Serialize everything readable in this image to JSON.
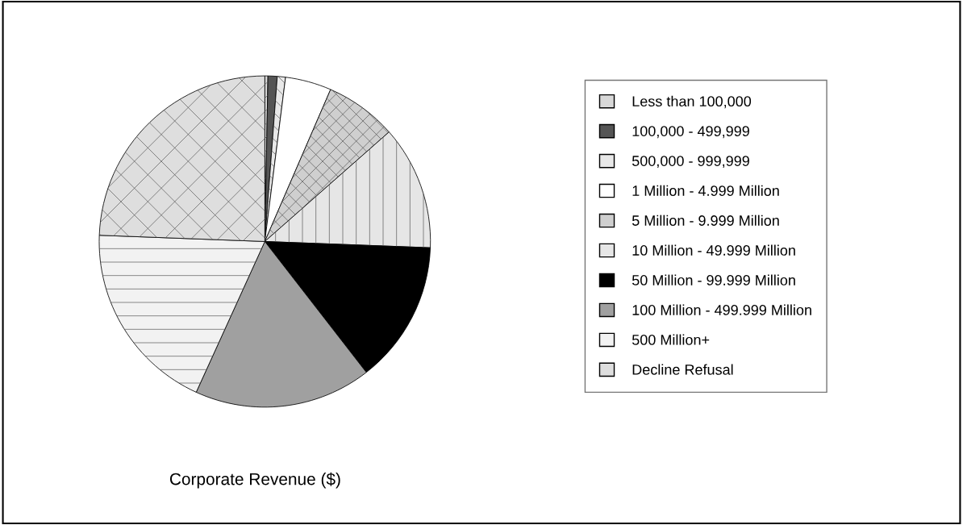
{
  "chart_data": {
    "type": "pie",
    "title": "Corporate Revenue ($)",
    "categories": [
      "Less than 100,000",
      "100,000 - 499,999",
      "500,000 - 999,999",
      "1 Million - 4.999 Million",
      "5 Million - 9.999 Million",
      "10 Million - 49.999 Million",
      "50 Million - 99.999 Million",
      "100 Million - 499.999 Million",
      "500 Million+",
      "Decline Refusal"
    ],
    "values": [
      0.3,
      0.9,
      0.8,
      4.5,
      7.0,
      12.1,
      13.9,
      17.3,
      18.8,
      24.4
    ],
    "colors": [
      "#d8d8d8",
      "#555555",
      "#e8e8e8",
      "#ffffff",
      "#cfcfcf",
      "#e6e6e6",
      "#000000",
      "#a0a0a0",
      "#f2f2f2",
      "#dedede"
    ],
    "legend": "right"
  }
}
